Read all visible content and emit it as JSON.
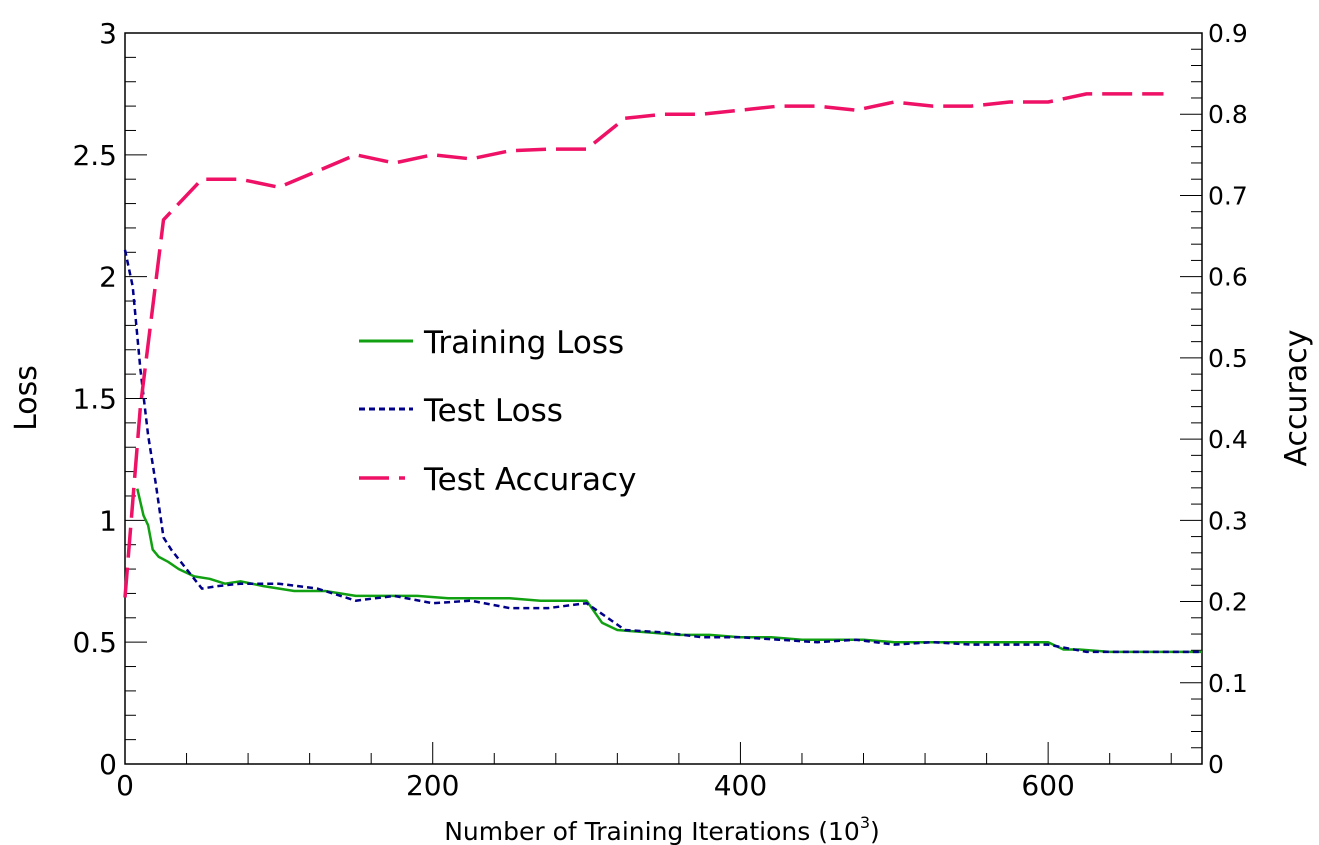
{
  "chart_data": {
    "type": "line",
    "title": "",
    "xlabel": "Number of Training Iterations (10",
    "xlabel_sup": "3",
    "xlabel_suffix": ")",
    "ylabel_left": "Loss",
    "ylabel_right": "Accuracy",
    "xlim": [
      0,
      700
    ],
    "ylim_left": [
      0,
      3
    ],
    "ylim_right": [
      0,
      0.9
    ],
    "x_ticks": [
      "0",
      "200",
      "400",
      "600"
    ],
    "x_tick_values": [
      0,
      200,
      400,
      600
    ],
    "y_left_ticks": [
      "0",
      "0.5",
      "1",
      "1.5",
      "2",
      "2.5",
      "3"
    ],
    "y_left_tick_values": [
      0,
      0.5,
      1,
      1.5,
      2,
      2.5,
      3
    ],
    "y_right_ticks": [
      "0",
      "0.1",
      "0.2",
      "0.3",
      "0.4",
      "0.5",
      "0.6",
      "0.7",
      "0.8",
      "0.9"
    ],
    "y_right_tick_values": [
      0,
      0.1,
      0.2,
      0.3,
      0.4,
      0.5,
      0.6,
      0.7,
      0.8,
      0.9
    ],
    "grid": false,
    "legend": {
      "position": "center-left"
    },
    "series": [
      {
        "name": "Training Loss",
        "axis": "left",
        "color": "#11a011",
        "style": "solid",
        "x": [
          8,
          12,
          15,
          18,
          22,
          28,
          35,
          45,
          55,
          65,
          75,
          90,
          110,
          130,
          150,
          170,
          190,
          210,
          230,
          250,
          270,
          290,
          300,
          310,
          320,
          340,
          360,
          380,
          400,
          420,
          440,
          460,
          480,
          500,
          520,
          540,
          560,
          580,
          600,
          610,
          620,
          640,
          660,
          680,
          700
        ],
        "y": [
          1.13,
          1.02,
          0.98,
          0.88,
          0.85,
          0.83,
          0.8,
          0.77,
          0.76,
          0.74,
          0.75,
          0.73,
          0.71,
          0.71,
          0.69,
          0.69,
          0.69,
          0.68,
          0.68,
          0.68,
          0.67,
          0.67,
          0.67,
          0.58,
          0.55,
          0.54,
          0.53,
          0.53,
          0.52,
          0.52,
          0.51,
          0.51,
          0.51,
          0.5,
          0.5,
          0.5,
          0.5,
          0.5,
          0.5,
          0.47,
          0.47,
          0.46,
          0.46,
          0.46,
          0.46
        ]
      },
      {
        "name": "Test Loss",
        "axis": "left",
        "color": "#000088",
        "style": "dotted",
        "x": [
          0,
          5,
          10,
          15,
          20,
          25,
          30,
          40,
          50,
          60,
          75,
          100,
          125,
          150,
          175,
          200,
          225,
          250,
          275,
          300,
          325,
          350,
          375,
          400,
          425,
          450,
          475,
          500,
          525,
          550,
          575,
          600,
          625,
          650,
          675,
          700
        ],
        "y": [
          2.11,
          1.96,
          1.62,
          1.35,
          1.15,
          0.93,
          0.88,
          0.8,
          0.72,
          0.73,
          0.74,
          0.74,
          0.72,
          0.67,
          0.69,
          0.66,
          0.67,
          0.64,
          0.64,
          0.66,
          0.55,
          0.54,
          0.52,
          0.52,
          0.51,
          0.5,
          0.51,
          0.49,
          0.5,
          0.49,
          0.49,
          0.49,
          0.46,
          0.46,
          0.46,
          0.46
        ]
      },
      {
        "name": "Test Accuracy",
        "axis": "right",
        "color": "#ee1166",
        "style": "dashed",
        "x": [
          0,
          10,
          25,
          50,
          75,
          100,
          125,
          150,
          175,
          200,
          225,
          250,
          275,
          300,
          325,
          350,
          375,
          400,
          425,
          450,
          475,
          500,
          525,
          550,
          575,
          600,
          625,
          650,
          675
        ],
        "y": [
          0.205,
          0.44,
          0.67,
          0.72,
          0.72,
          0.71,
          0.73,
          0.75,
          0.74,
          0.75,
          0.745,
          0.755,
          0.757,
          0.757,
          0.795,
          0.8,
          0.8,
          0.805,
          0.81,
          0.81,
          0.805,
          0.815,
          0.81,
          0.81,
          0.815,
          0.815,
          0.825,
          0.825,
          0.825
        ]
      }
    ]
  }
}
